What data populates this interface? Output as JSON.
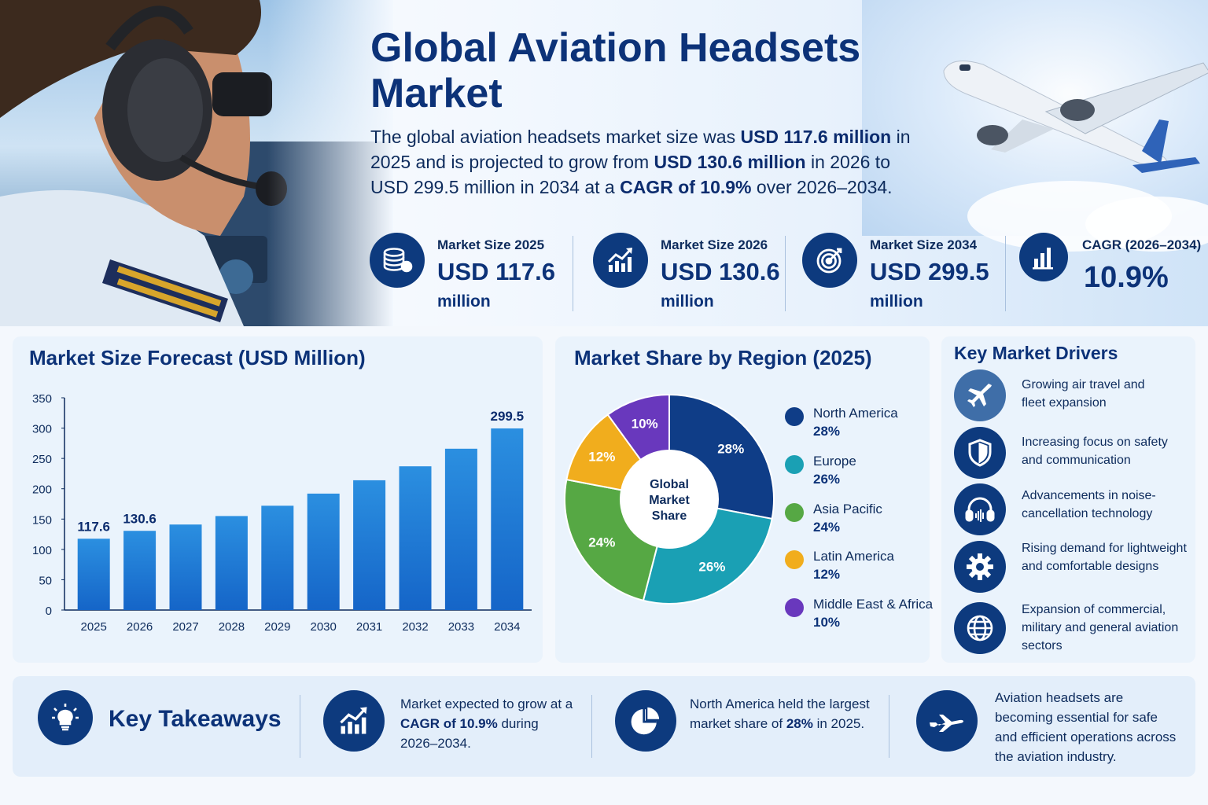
{
  "title": "Global Aviation Headsets Market",
  "lead": {
    "p1": "The global aviation headsets market size was ",
    "b1": "USD 117.6 million",
    "p2": " in 2025 and is projected to grow from ",
    "b2": "USD 130.6 million",
    "p3": " in 2026 to USD 299.5 million in 2034 at a ",
    "b3": "CAGR of 10.9%",
    "p4": " over 2026–2034."
  },
  "kpis": [
    {
      "label": "Market Size 2025",
      "value": "USD 117.6",
      "unit": "million",
      "icon": "coins-icon"
    },
    {
      "label": "Market Size 2026",
      "value": "USD 130.6",
      "unit": "million",
      "icon": "growth-chart-icon"
    },
    {
      "label": "Market Size 2034",
      "value": "USD 299.5",
      "unit": "million",
      "icon": "target-icon"
    },
    {
      "label": "CAGR (2026–2034)",
      "value": "10.9%",
      "unit": "",
      "icon": "bar-chart-icon"
    }
  ],
  "forecast_title": "Market Size Forecast (USD Million)",
  "region_title": "Market Share by Region (2025)",
  "donut_center": [
    "Global",
    "Market",
    "Share"
  ],
  "chart_data": [
    {
      "type": "bar",
      "title": "Market Size Forecast (USD Million)",
      "categories": [
        "2025",
        "2026",
        "2027",
        "2028",
        "2029",
        "2030",
        "2031",
        "2032",
        "2033",
        "2034"
      ],
      "values": [
        117.6,
        130.6,
        141,
        155,
        172,
        192,
        214,
        237,
        266,
        299.5
      ],
      "data_labels": {
        "0": "117.6",
        "1": "130.6",
        "9": "299.5"
      },
      "yticks": [
        0,
        50,
        100,
        150,
        200,
        250,
        300,
        350
      ],
      "ylim": [
        0,
        350
      ],
      "color": "#1565c8"
    },
    {
      "type": "pie",
      "title": "Market Share by Region (2025)",
      "slices": [
        {
          "name": "North America",
          "value": 28,
          "label": "28%",
          "color": "#0f3d87"
        },
        {
          "name": "Europe",
          "value": 26,
          "label": "26%",
          "color": "#1aa0b4"
        },
        {
          "name": "Asia Pacific",
          "value": 24,
          "label": "24%",
          "color": "#56a844"
        },
        {
          "name": "Latin America",
          "value": 12,
          "label": "12%",
          "color": "#f1ad1d"
        },
        {
          "name": "Middle East & Africa",
          "value": 10,
          "label": "10%",
          "color": "#6938bd"
        }
      ]
    }
  ],
  "drivers_title": "Key Market Drivers",
  "drivers": [
    {
      "text": "Growing air travel and fleet expansion",
      "icon": "airplane-icon"
    },
    {
      "text": "Increasing focus on safety and communication",
      "icon": "shield-icon"
    },
    {
      "text": "Advancements in noise-cancellation technology",
      "icon": "headset-icon"
    },
    {
      "text": "Rising demand for lightweight and comfortable designs",
      "icon": "gear-icon"
    },
    {
      "text": "Expansion of commercial, military and general aviation sectors",
      "icon": "globe-icon"
    }
  ],
  "takeaways": {
    "title": "Key Takeaways",
    "icon": "lightbulb-icon",
    "items": [
      {
        "icon": "growth-chart-icon",
        "p1": "Market expected to grow at a ",
        "b1": "CAGR of 10.9%",
        "p2": " during 2026–2034."
      },
      {
        "icon": "pie-chart-icon",
        "p1": "North America held the largest market share of ",
        "b1": "28%",
        "p2": " in 2025."
      },
      {
        "icon": "airplane-icon",
        "p1": "Aviation headsets are becoming essential for safe and efficient operations across the aviation industry.",
        "b1": "",
        "p2": ""
      }
    ]
  }
}
